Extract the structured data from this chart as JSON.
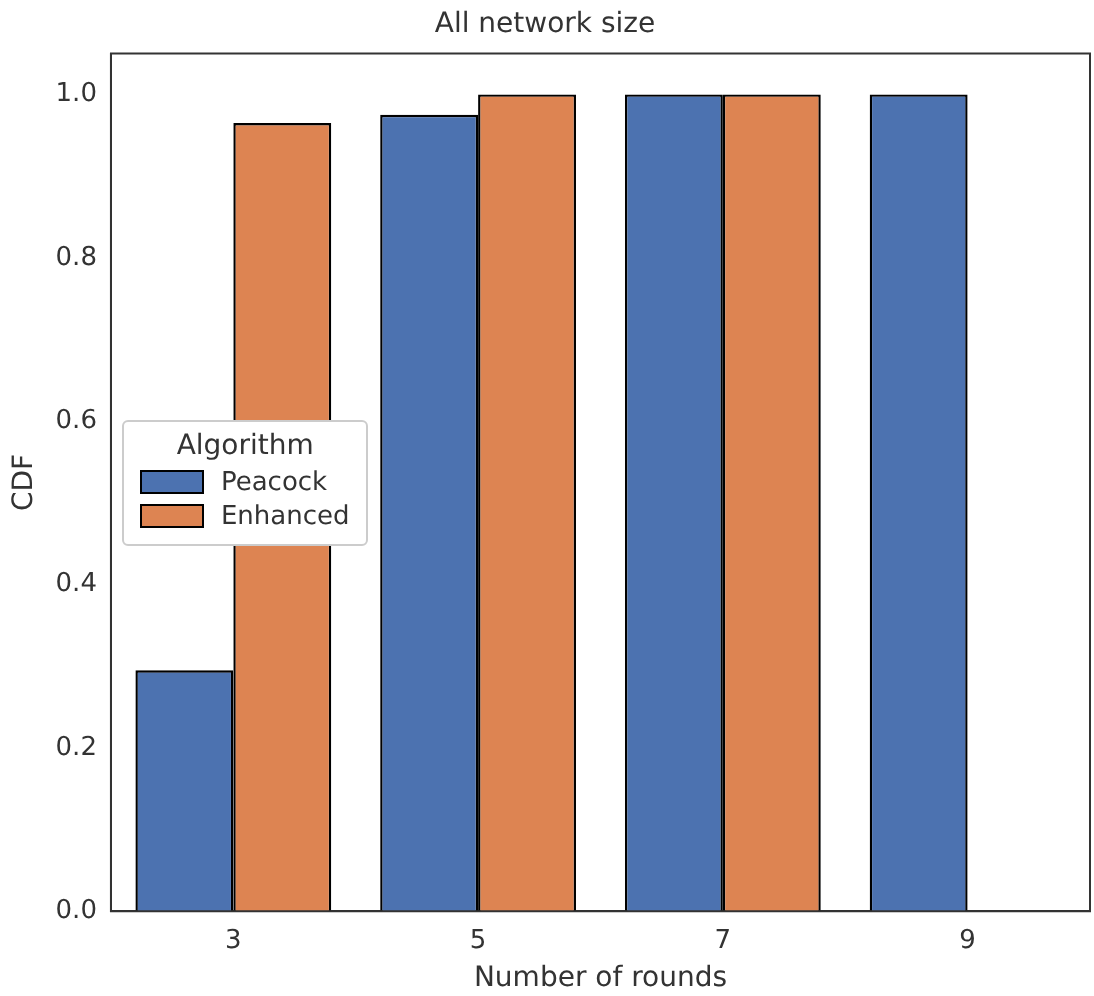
{
  "chart_data": {
    "type": "bar",
    "title": "All network size",
    "xlabel": "Number of rounds",
    "ylabel": "CDF",
    "legend_title": "Algorithm",
    "legend": "center left",
    "grid": false,
    "categories": [
      "3",
      "5",
      "7",
      "9"
    ],
    "series": [
      {
        "name": "Peacock",
        "color": "#4c72b0",
        "values": [
          0.295,
          0.975,
          1.0,
          1.0
        ]
      },
      {
        "name": "Enhanced",
        "color": "#dd8452",
        "values": [
          0.965,
          1.0,
          1.0,
          null
        ]
      }
    ],
    "ylim": [
      0,
      1.05
    ],
    "yticks": [
      {
        "value": 0,
        "label": "0.0"
      },
      {
        "value": 0.2,
        "label": "0.2"
      },
      {
        "value": 0.4,
        "label": "0.4"
      },
      {
        "value": 0.6,
        "label": "0.6"
      },
      {
        "value": 0.8,
        "label": "0.8"
      },
      {
        "value": 1,
        "label": "1.0"
      }
    ]
  }
}
